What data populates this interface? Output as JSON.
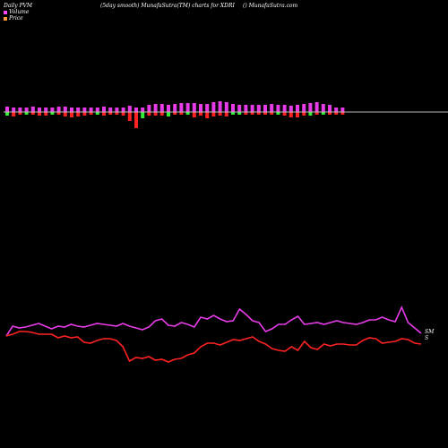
{
  "header": {
    "left": "Daily PVM",
    "center": "(5day smooth) MunafaSutra(TM) charts for XDRI",
    "right": "() MunafaSutra.com"
  },
  "legend": [
    {
      "label": "Volume",
      "color": "#ff44ff"
    },
    {
      "label": "Price",
      "color": "#ff9a3d"
    }
  ],
  "colors": {
    "background": "#000000",
    "up_bar": "#e83ce8",
    "down_bar": "#ff2222",
    "green_bar": "#33ee33",
    "baseline": "#bbbbbb",
    "volume_line": "#e83ce8",
    "price_line": "#ff2222"
  },
  "end_labels": {
    "volume": "SM",
    "price": "S"
  },
  "chart_data": {
    "type": "line",
    "title": "",
    "bars": {
      "up": [
        6,
        5,
        5,
        5,
        6,
        5,
        5,
        5,
        6,
        6,
        5,
        5,
        5,
        5,
        5,
        6,
        5,
        5,
        5,
        7,
        5,
        5,
        8,
        9,
        9,
        8,
        9,
        10,
        10,
        10,
        9,
        9,
        11,
        12,
        11,
        9,
        8,
        8,
        8,
        8,
        8,
        9,
        8,
        8,
        7,
        8,
        9,
        10,
        11,
        9,
        8,
        5,
        5
      ],
      "down": [
        4,
        5,
        3,
        3,
        3,
        4,
        4,
        3,
        3,
        5,
        6,
        5,
        4,
        3,
        3,
        4,
        3,
        3,
        4,
        10,
        18,
        7,
        4,
        4,
        4,
        5,
        3,
        3,
        3,
        6,
        4,
        7,
        5,
        4,
        5,
        3,
        3,
        3,
        3,
        3,
        3,
        3,
        3,
        4,
        6,
        6,
        4,
        4,
        3,
        3,
        3,
        3,
        3
      ],
      "green": [
        0,
        0,
        0,
        0,
        0,
        0,
        0,
        0,
        0,
        0,
        0,
        0,
        0,
        0,
        0,
        0,
        0,
        0,
        0,
        0,
        0,
        0,
        0,
        0,
        0,
        0,
        0,
        0,
        4,
        0,
        0,
        0,
        0,
        0,
        0,
        0,
        0,
        0,
        0,
        0,
        0,
        0,
        0,
        0,
        0,
        0,
        0,
        0,
        0,
        0,
        0,
        0,
        0
      ]
    },
    "series": [
      {
        "values": [
          375,
          364,
          366,
          365,
          363,
          361,
          364,
          367,
          364,
          365,
          362,
          364,
          365,
          363,
          361,
          362,
          363,
          364,
          361,
          364,
          366,
          368,
          365,
          358,
          356,
          363,
          364,
          360,
          362,
          365,
          354,
          356,
          352,
          356,
          359,
          358,
          345,
          351,
          358,
          360,
          370,
          367,
          362,
          362,
          357,
          353,
          362,
          361,
          360,
          362,
          360,
          358,
          360,
          361,
          362,
          360,
          357,
          357,
          354,
          357,
          359,
          343,
          360,
          366,
          372
        ]
      },
      {
        "values": [
          375,
          373,
          370,
          370,
          371,
          373,
          373,
          373,
          377,
          375,
          377,
          376,
          382,
          383,
          380,
          378,
          378,
          380,
          387,
          403,
          399,
          400,
          398,
          402,
          401,
          404,
          401,
          400,
          396,
          394,
          387,
          383,
          383,
          385,
          382,
          379,
          380,
          378,
          376,
          381,
          384,
          389,
          391,
          392,
          387,
          391,
          381,
          388,
          390,
          384,
          386,
          384,
          384,
          385,
          385,
          380,
          377,
          378,
          383,
          382,
          381,
          378,
          379,
          383,
          384
        ]
      }
    ]
  }
}
